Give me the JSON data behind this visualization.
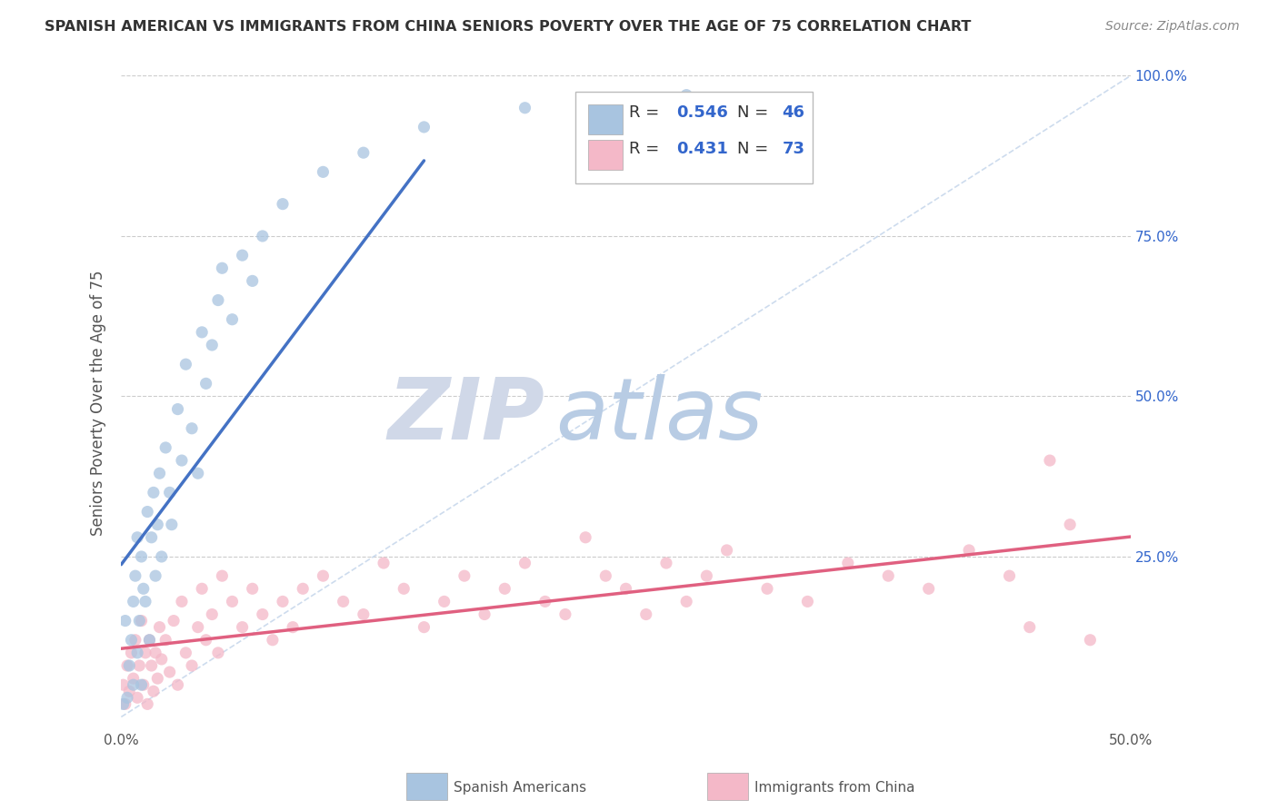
{
  "title": "SPANISH AMERICAN VS IMMIGRANTS FROM CHINA SENIORS POVERTY OVER THE AGE OF 75 CORRELATION CHART",
  "source": "Source: ZipAtlas.com",
  "ylabel": "Seniors Poverty Over the Age of 75",
  "xlim": [
    0.0,
    0.5
  ],
  "ylim": [
    -0.02,
    1.0
  ],
  "blue_color": "#a8c4e0",
  "blue_line_color": "#4472c4",
  "pink_color": "#f4b8c8",
  "pink_line_color": "#e06080",
  "diag_color": "#c8d8ec",
  "watermark_zip": "ZIP",
  "watermark_atlas": "atlas",
  "watermark_zip_color": "#d0d8e8",
  "watermark_atlas_color": "#b8cce4",
  "blue_r": "0.546",
  "blue_n": "46",
  "pink_r": "0.431",
  "pink_n": "73",
  "blue_x": [
    0.001,
    0.002,
    0.003,
    0.004,
    0.005,
    0.006,
    0.006,
    0.007,
    0.008,
    0.008,
    0.009,
    0.01,
    0.01,
    0.011,
    0.012,
    0.013,
    0.014,
    0.015,
    0.016,
    0.017,
    0.018,
    0.019,
    0.02,
    0.022,
    0.024,
    0.025,
    0.028,
    0.03,
    0.032,
    0.035,
    0.038,
    0.04,
    0.042,
    0.045,
    0.048,
    0.05,
    0.055,
    0.06,
    0.065,
    0.07,
    0.08,
    0.1,
    0.12,
    0.15,
    0.2,
    0.28
  ],
  "blue_y": [
    0.02,
    0.15,
    0.03,
    0.08,
    0.12,
    0.18,
    0.05,
    0.22,
    0.1,
    0.28,
    0.15,
    0.05,
    0.25,
    0.2,
    0.18,
    0.32,
    0.12,
    0.28,
    0.35,
    0.22,
    0.3,
    0.38,
    0.25,
    0.42,
    0.35,
    0.3,
    0.48,
    0.4,
    0.55,
    0.45,
    0.38,
    0.6,
    0.52,
    0.58,
    0.65,
    0.7,
    0.62,
    0.72,
    0.68,
    0.75,
    0.8,
    0.85,
    0.88,
    0.92,
    0.95,
    0.97
  ],
  "pink_x": [
    0.001,
    0.002,
    0.003,
    0.004,
    0.005,
    0.006,
    0.007,
    0.008,
    0.009,
    0.01,
    0.011,
    0.012,
    0.013,
    0.014,
    0.015,
    0.016,
    0.017,
    0.018,
    0.019,
    0.02,
    0.022,
    0.024,
    0.026,
    0.028,
    0.03,
    0.032,
    0.035,
    0.038,
    0.04,
    0.042,
    0.045,
    0.048,
    0.05,
    0.055,
    0.06,
    0.065,
    0.07,
    0.075,
    0.08,
    0.085,
    0.09,
    0.1,
    0.11,
    0.12,
    0.13,
    0.14,
    0.15,
    0.16,
    0.17,
    0.18,
    0.19,
    0.2,
    0.21,
    0.22,
    0.23,
    0.24,
    0.25,
    0.26,
    0.27,
    0.28,
    0.29,
    0.3,
    0.32,
    0.34,
    0.36,
    0.38,
    0.4,
    0.42,
    0.44,
    0.45,
    0.46,
    0.47,
    0.48
  ],
  "pink_y": [
    0.05,
    0.02,
    0.08,
    0.04,
    0.1,
    0.06,
    0.12,
    0.03,
    0.08,
    0.15,
    0.05,
    0.1,
    0.02,
    0.12,
    0.08,
    0.04,
    0.1,
    0.06,
    0.14,
    0.09,
    0.12,
    0.07,
    0.15,
    0.05,
    0.18,
    0.1,
    0.08,
    0.14,
    0.2,
    0.12,
    0.16,
    0.1,
    0.22,
    0.18,
    0.14,
    0.2,
    0.16,
    0.12,
    0.18,
    0.14,
    0.2,
    0.22,
    0.18,
    0.16,
    0.24,
    0.2,
    0.14,
    0.18,
    0.22,
    0.16,
    0.2,
    0.24,
    0.18,
    0.16,
    0.28,
    0.22,
    0.2,
    0.16,
    0.24,
    0.18,
    0.22,
    0.26,
    0.2,
    0.18,
    0.24,
    0.22,
    0.2,
    0.26,
    0.22,
    0.14,
    0.4,
    0.3,
    0.12
  ]
}
